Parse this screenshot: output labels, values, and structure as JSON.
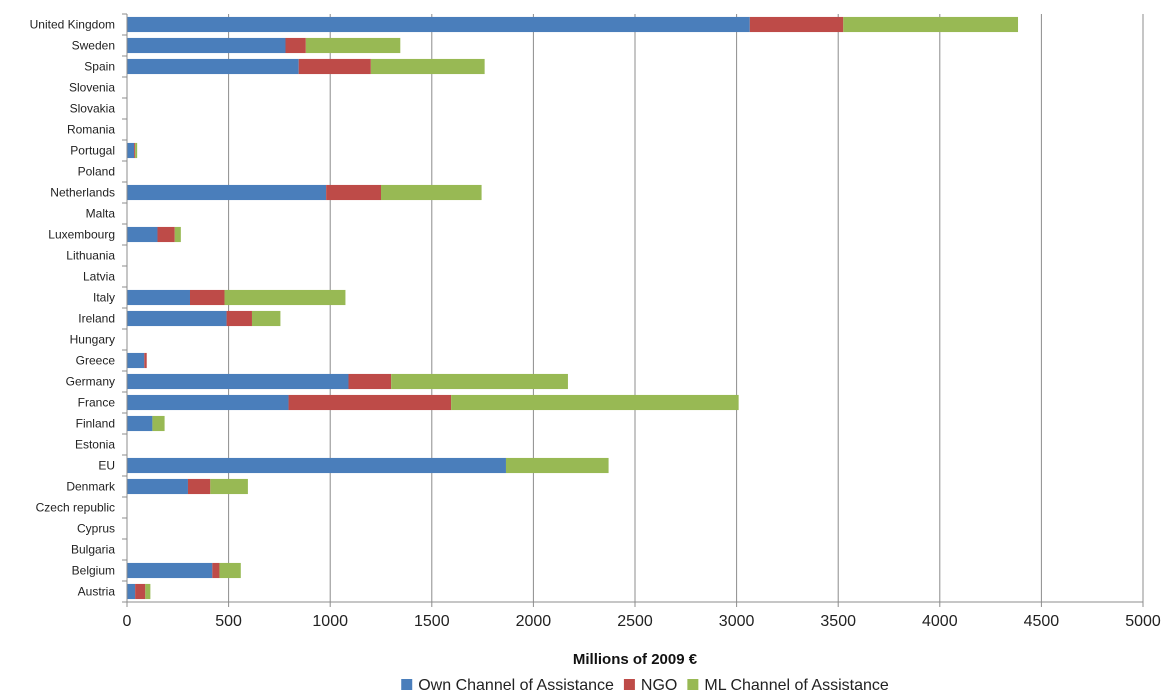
{
  "chart_data": {
    "type": "bar",
    "orientation": "horizontal",
    "stacked": true,
    "title": "",
    "xlabel": "Millions of 2009 €",
    "ylabel": "",
    "xlim": [
      0,
      5000
    ],
    "x_ticks": [
      0,
      500,
      1000,
      1500,
      2000,
      2500,
      3000,
      3500,
      4000,
      4500,
      5000
    ],
    "grid": "vertical",
    "legend_position": "bottom",
    "categories": [
      "Austria",
      "Belgium",
      "Bulgaria",
      "Cyprus",
      "Czech republic",
      "Denmark",
      "EU",
      "Estonia",
      "Finland",
      "France",
      "Germany",
      "Greece",
      "Hungary",
      "Ireland",
      "Italy",
      "Latvia",
      "Lithuania",
      "Luxembourg",
      "Malta",
      "Netherlands",
      "Poland",
      "Portugal",
      "Romania",
      "Slovakia",
      "Slovenia",
      "Spain",
      "Sweden",
      "United Kingdom"
    ],
    "series": [
      {
        "name": "Own Channel of Assistance",
        "color": "#4a7ebb",
        "values": [
          40,
          420,
          0,
          0,
          0,
          300,
          1865,
          0,
          125,
          795,
          1090,
          85,
          0,
          490,
          310,
          0,
          0,
          150,
          0,
          980,
          0,
          35,
          0,
          0,
          0,
          845,
          780,
          3065
        ]
      },
      {
        "name": "NGO",
        "color": "#be4b48",
        "values": [
          50,
          35,
          0,
          0,
          0,
          110,
          0,
          0,
          0,
          800,
          210,
          12,
          0,
          125,
          170,
          0,
          0,
          85,
          0,
          270,
          0,
          5,
          0,
          0,
          0,
          355,
          100,
          460
        ]
      },
      {
        "name": "ML Channel of Assistance",
        "color": "#98b954",
        "values": [
          25,
          105,
          0,
          0,
          0,
          185,
          505,
          0,
          60,
          1415,
          870,
          0,
          0,
          140,
          595,
          0,
          0,
          30,
          0,
          495,
          0,
          10,
          0,
          0,
          0,
          560,
          465,
          860
        ]
      }
    ]
  }
}
